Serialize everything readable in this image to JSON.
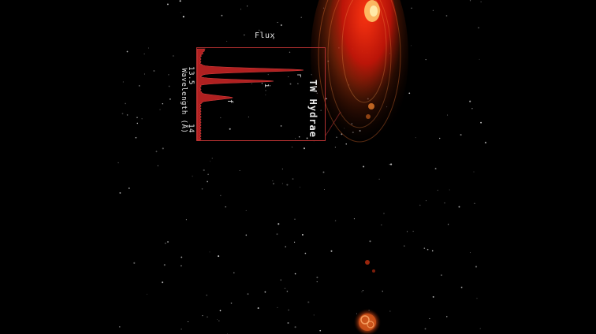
{
  "spectrum": {
    "flux_label": "Flux",
    "star_name": "TW Hydrae",
    "wavelength_label": "Wavelength (Å)",
    "wavelength_ticks": [
      "13.5",
      "14"
    ],
    "lines": [
      "r",
      "i",
      "f"
    ]
  },
  "colors": {
    "background": "#000000",
    "spectrum_fill": "#b02020",
    "frame": "#b03030",
    "disk_outer": "#7a2a05",
    "disk_core": "#e01a0a"
  }
}
